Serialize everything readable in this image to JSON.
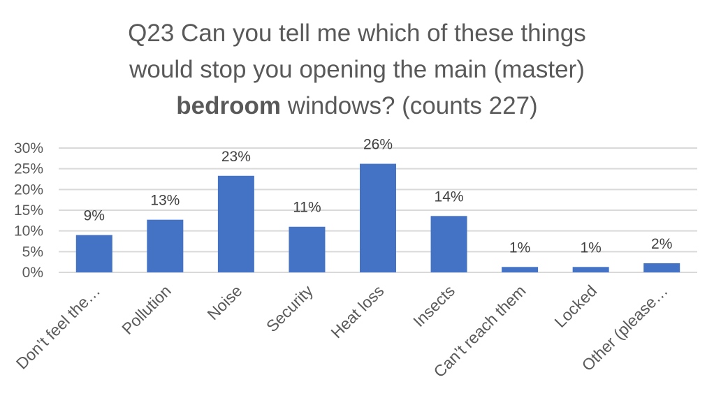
{
  "chart_data": {
    "type": "bar",
    "title": {
      "line1": "Q23 Can you tell me which of these things",
      "line2": "would stop you opening the main (master)",
      "line3_bold": "bedroom",
      "line3_rest": " windows? (counts 227)"
    },
    "xlabel": "",
    "ylabel": "",
    "categories": [
      "Don’t feel the…",
      "Pollution",
      "Noise",
      "Security",
      "Heat loss",
      "Insects",
      "Can’t reach them",
      "Locked",
      "Other (please…"
    ],
    "values": [
      0.09,
      0.127,
      0.233,
      0.11,
      0.262,
      0.136,
      0.013,
      0.013,
      0.022
    ],
    "data_labels": [
      "9%",
      "13%",
      "23%",
      "11%",
      "26%",
      "14%",
      "1%",
      "1%",
      "2%"
    ],
    "ylim": [
      0,
      0.3
    ],
    "yticks": [
      {
        "value": 0.3,
        "label": "30%"
      },
      {
        "value": 0.25,
        "label": "25%"
      },
      {
        "value": 0.2,
        "label": "20%"
      },
      {
        "value": 0.15,
        "label": "15%"
      },
      {
        "value": 0.1,
        "label": "10%"
      },
      {
        "value": 0.05,
        "label": "5%"
      },
      {
        "value": 0.0,
        "label": "0%"
      }
    ],
    "grid": true,
    "bar_color": "#4472C4",
    "grid_color": "#D9D9D9"
  }
}
